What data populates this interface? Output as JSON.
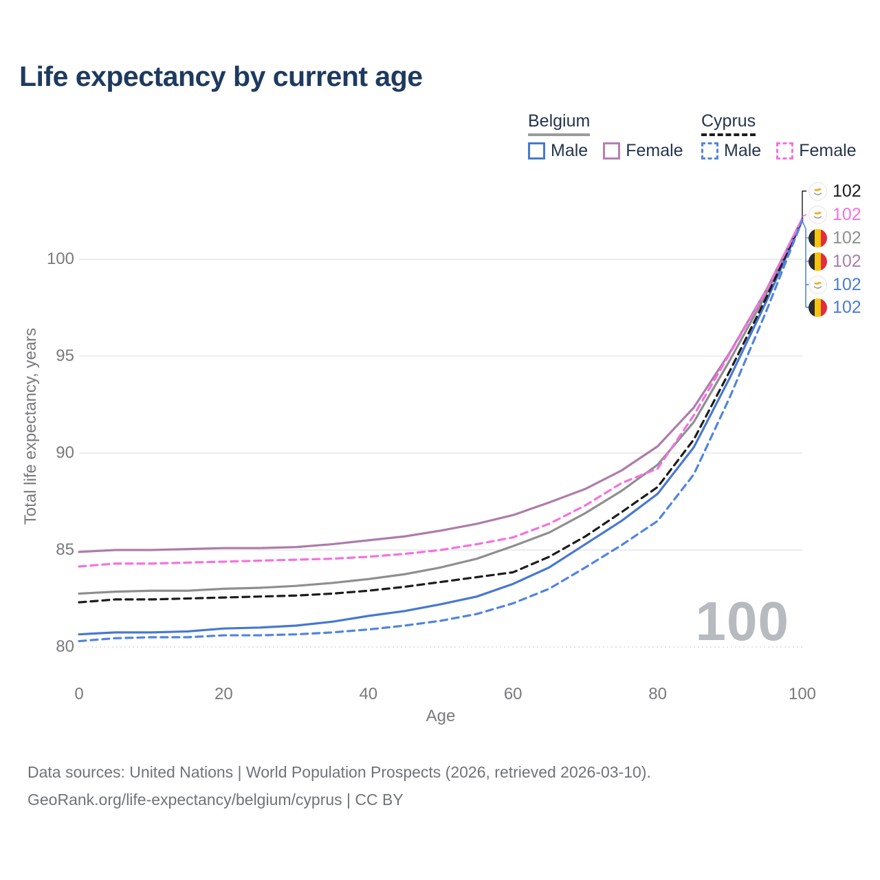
{
  "title": "Life expectancy by current age",
  "legend": {
    "groups": [
      {
        "id": "belgium",
        "label": "Belgium",
        "line_style": "solid",
        "line_color": "#9b9b9d",
        "items": [
          {
            "label": "Male",
            "color": "#4678d2",
            "dash": false
          },
          {
            "label": "Female",
            "color": "#b77fb2",
            "dash": false
          }
        ]
      },
      {
        "id": "cyprus",
        "label": "Cyprus",
        "line_style": "dashed",
        "line_color": "#1c1c1c",
        "items": [
          {
            "label": "Male",
            "color": "#5184e2",
            "dash": true
          },
          {
            "label": "Female",
            "color": "#f570e0",
            "dash": true
          }
        ]
      }
    ]
  },
  "chart_data": {
    "type": "line",
    "title": "Life expectancy by current age",
    "xlabel": "Age",
    "ylabel": "Total life expectancy, years",
    "xlim": [
      0,
      100
    ],
    "ylim": [
      80,
      102.5
    ],
    "x_ticks": [
      0,
      20,
      40,
      60,
      80,
      100
    ],
    "y_ticks": [
      80,
      85,
      90,
      95,
      100
    ],
    "grid": "horizontal",
    "legend_position": "top-right",
    "x": [
      0,
      5,
      10,
      15,
      20,
      25,
      30,
      35,
      40,
      45,
      50,
      55,
      60,
      65,
      70,
      75,
      80,
      85,
      90,
      95,
      100
    ],
    "series": [
      {
        "id": "belgium-total",
        "name": "Belgium (both sexes)",
        "color": "#8e8e90",
        "dash": false,
        "values": [
          82.75,
          82.85,
          82.9,
          82.9,
          83.0,
          83.05,
          83.15,
          83.3,
          83.5,
          83.75,
          84.1,
          84.55,
          85.2,
          85.9,
          86.9,
          88.05,
          89.4,
          91.6,
          94.8,
          98.2,
          102.05
        ]
      },
      {
        "id": "belgium-female",
        "name": "Belgium Female",
        "color": "#ad7caa",
        "dash": false,
        "values": [
          84.9,
          85.0,
          85.0,
          85.05,
          85.1,
          85.1,
          85.15,
          85.3,
          85.5,
          85.7,
          86.0,
          86.35,
          86.8,
          87.45,
          88.15,
          89.1,
          90.35,
          92.35,
          95.2,
          98.4,
          102.1
        ]
      },
      {
        "id": "belgium-male",
        "name": "Belgium Male",
        "color": "#4678d2",
        "dash": false,
        "values": [
          80.65,
          80.75,
          80.75,
          80.8,
          80.95,
          81.0,
          81.1,
          81.3,
          81.6,
          81.85,
          82.2,
          82.6,
          83.25,
          84.1,
          85.3,
          86.5,
          87.9,
          90.3,
          93.9,
          97.8,
          102.0
        ]
      },
      {
        "id": "cyprus-total",
        "name": "Cyprus (both sexes)",
        "color": "#1c1c1c",
        "dash": true,
        "values": [
          82.3,
          82.45,
          82.45,
          82.5,
          82.55,
          82.6,
          82.65,
          82.75,
          82.9,
          83.1,
          83.35,
          83.6,
          83.85,
          84.65,
          85.7,
          86.95,
          88.25,
          90.7,
          94.25,
          98.0,
          102.05
        ]
      },
      {
        "id": "cyprus-female",
        "name": "Cyprus Female",
        "color": "#f570e0",
        "dash": true,
        "values": [
          84.15,
          84.3,
          84.3,
          84.35,
          84.4,
          84.45,
          84.5,
          84.55,
          84.65,
          84.8,
          85.0,
          85.3,
          85.65,
          86.35,
          87.3,
          88.45,
          89.2,
          91.95,
          95.15,
          98.35,
          102.1
        ]
      },
      {
        "id": "cyprus-male",
        "name": "Cyprus Male",
        "color": "#5184e2",
        "dash": true,
        "values": [
          80.3,
          80.45,
          80.5,
          80.5,
          80.6,
          80.6,
          80.65,
          80.75,
          80.9,
          81.1,
          81.35,
          81.7,
          82.25,
          83.0,
          84.1,
          85.25,
          86.5,
          88.9,
          92.9,
          97.3,
          102.0
        ]
      }
    ]
  },
  "endpoint_labels": [
    {
      "series": "cyprus-total",
      "flag": "cyprus",
      "value": "102",
      "color": "#1c1c1c"
    },
    {
      "series": "cyprus-female",
      "flag": "cyprus",
      "value": "102",
      "color": "#f570e0"
    },
    {
      "series": "belgium-total",
      "flag": "belgium",
      "value": "102",
      "color": "#8e8e90"
    },
    {
      "series": "belgium-female",
      "flag": "belgium",
      "value": "102",
      "color": "#a57fa8"
    },
    {
      "series": "cyprus-male",
      "flag": "cyprus",
      "value": "102",
      "color": "#4a7cd6"
    },
    {
      "series": "belgium-male",
      "flag": "belgium",
      "value": "102",
      "color": "#4a7cd6"
    }
  ],
  "watermark": "100",
  "footer": {
    "line1": "Data sources: United Nations | World Population Prospects (2026, retrieved 2026-03-10).",
    "line2": "GeoRank.org/life-expectancy/belgium/cyprus | CC BY"
  }
}
